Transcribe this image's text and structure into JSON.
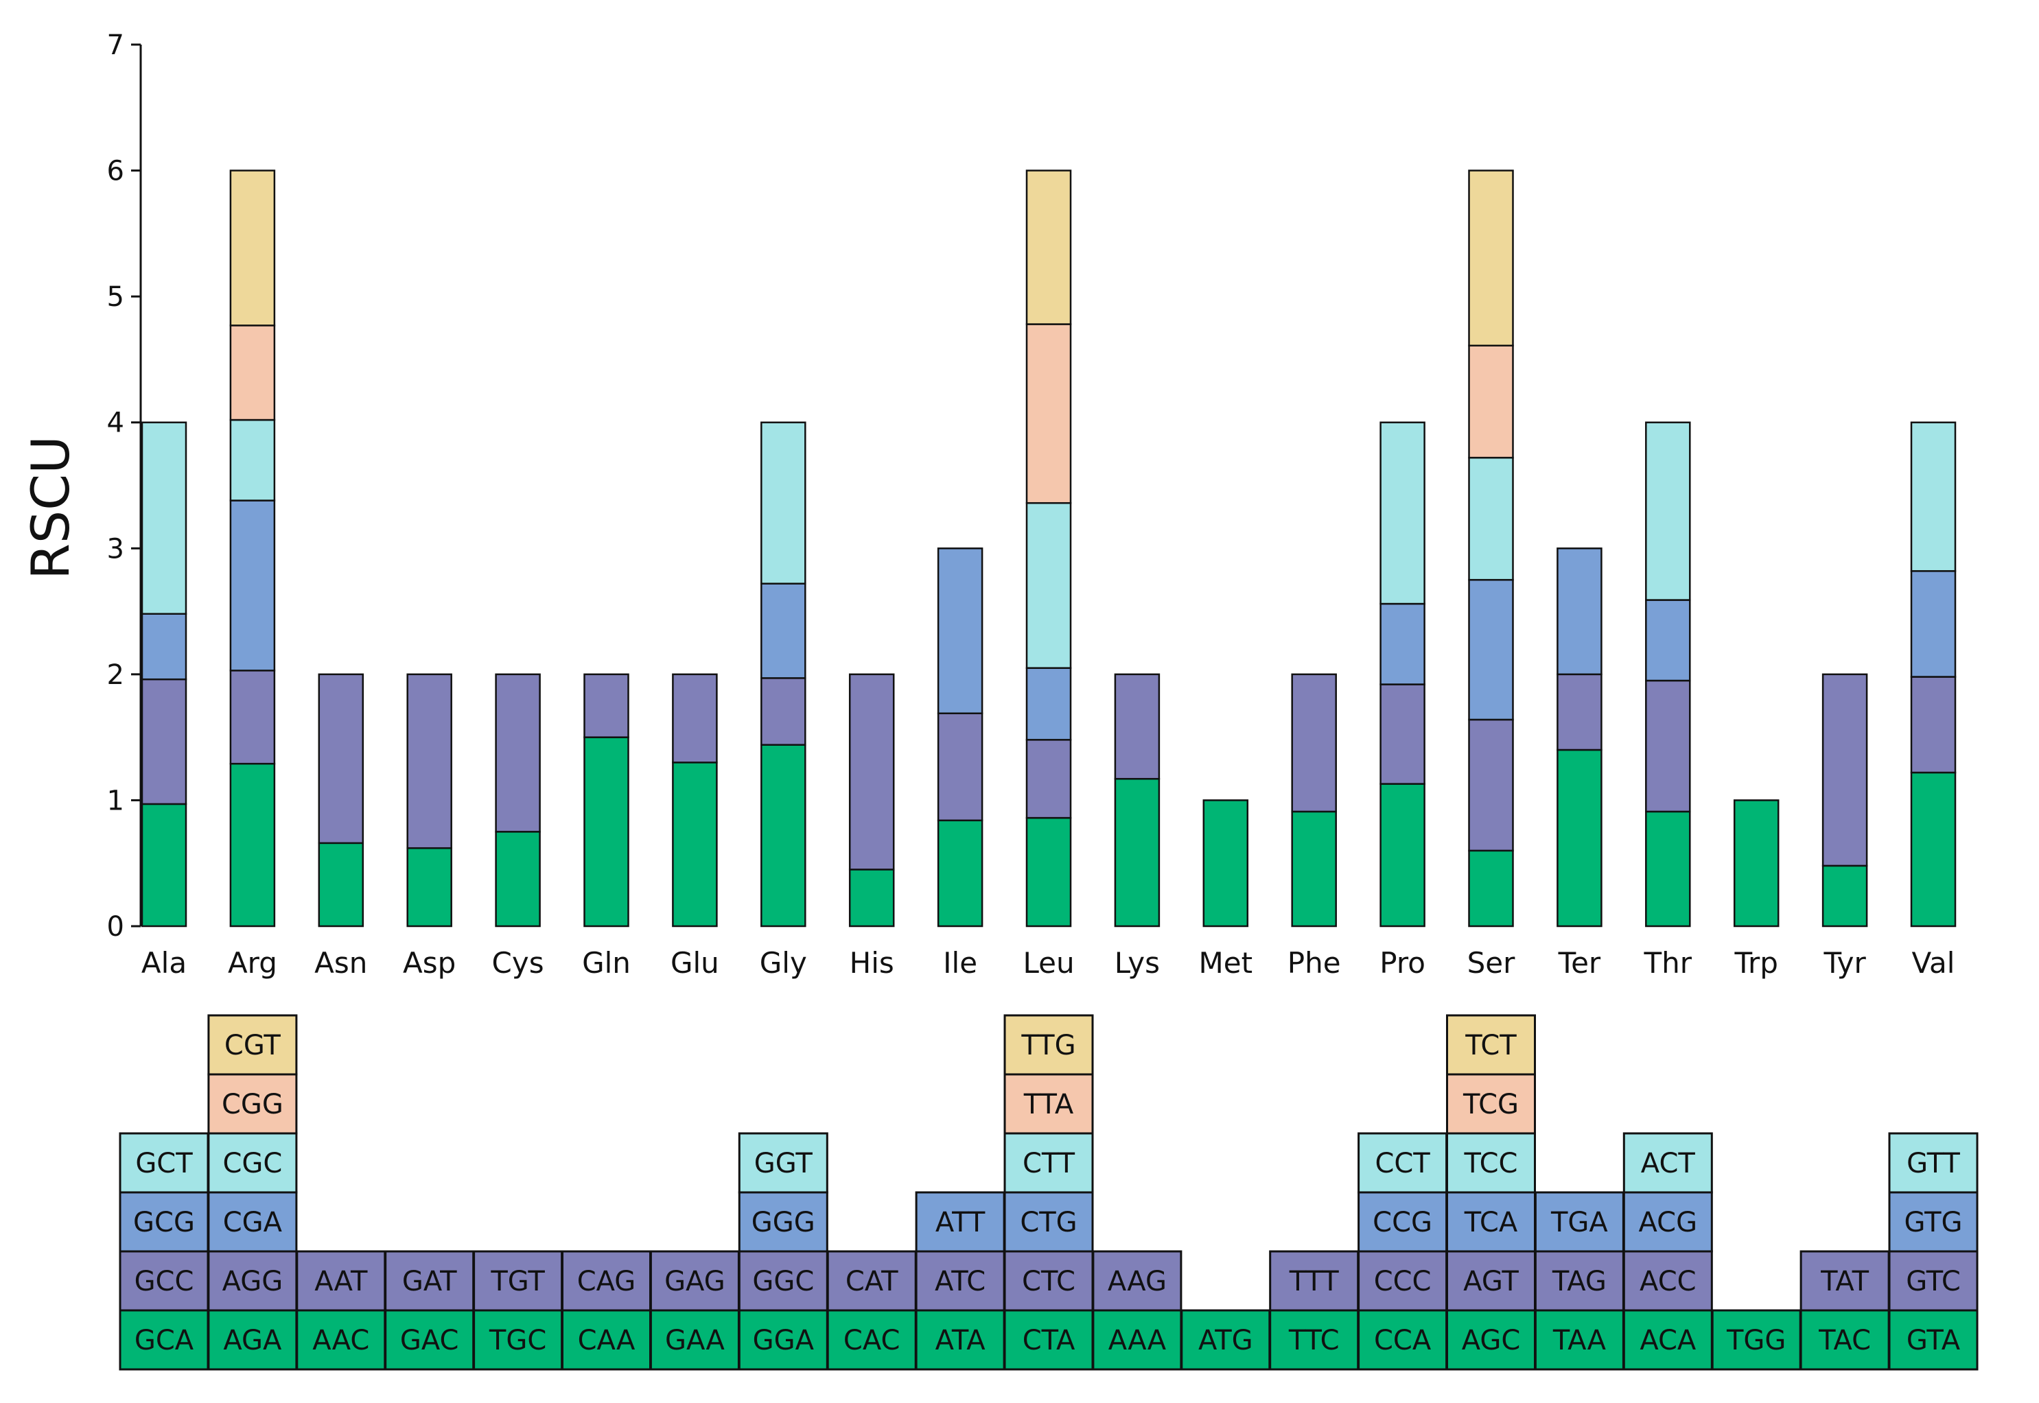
{
  "chart_data": {
    "type": "bar",
    "stacked": true,
    "ylabel": "RSCU",
    "xlabel": "",
    "ylim": [
      0,
      7
    ],
    "yticks": [
      0,
      1,
      2,
      3,
      4,
      5,
      6,
      7
    ],
    "grid": false,
    "layer_colors": [
      "#00b574",
      "#8080b8",
      "#7aa0d6",
      "#a3e4e6",
      "#f5c7ad",
      "#eed89a"
    ],
    "categories": [
      "Ala",
      "Arg",
      "Asn",
      "Asp",
      "Cys",
      "Gln",
      "Glu",
      "Gly",
      "His",
      "Ile",
      "Leu",
      "Lys",
      "Met",
      "Phe",
      "Pro",
      "Ser",
      "Ter",
      "Thr",
      "Trp",
      "Tyr",
      "Val"
    ],
    "stacks": [
      {
        "aa": "Ala",
        "codons": [
          "GCA",
          "GCC",
          "GCG",
          "GCT"
        ],
        "values": [
          0.97,
          0.99,
          0.52,
          1.52
        ]
      },
      {
        "aa": "Arg",
        "codons": [
          "AGA",
          "AGG",
          "CGA",
          "CGC",
          "CGG",
          "CGT"
        ],
        "values": [
          1.29,
          0.74,
          1.35,
          0.64,
          0.75,
          1.23
        ]
      },
      {
        "aa": "Asn",
        "codons": [
          "AAC",
          "AAT"
        ],
        "values": [
          0.66,
          1.34
        ]
      },
      {
        "aa": "Asp",
        "codons": [
          "GAC",
          "GAT"
        ],
        "values": [
          0.62,
          1.38
        ]
      },
      {
        "aa": "Cys",
        "codons": [
          "TGC",
          "TGT"
        ],
        "values": [
          0.75,
          1.25
        ]
      },
      {
        "aa": "Gln",
        "codons": [
          "CAA",
          "CAG"
        ],
        "values": [
          1.5,
          0.5
        ]
      },
      {
        "aa": "Glu",
        "codons": [
          "GAA",
          "GAG"
        ],
        "values": [
          1.3,
          0.7
        ]
      },
      {
        "aa": "Gly",
        "codons": [
          "GGA",
          "GGC",
          "GGG",
          "GGT"
        ],
        "values": [
          1.44,
          0.53,
          0.75,
          1.28
        ]
      },
      {
        "aa": "His",
        "codons": [
          "CAC",
          "CAT"
        ],
        "values": [
          0.45,
          1.55
        ]
      },
      {
        "aa": "Ile",
        "codons": [
          "ATA",
          "ATC",
          "ATT"
        ],
        "values": [
          0.84,
          0.85,
          1.31
        ]
      },
      {
        "aa": "Leu",
        "codons": [
          "CTA",
          "CTC",
          "CTG",
          "CTT",
          "TTA",
          "TTG"
        ],
        "values": [
          0.86,
          0.62,
          0.57,
          1.31,
          1.42,
          1.22
        ]
      },
      {
        "aa": "Lys",
        "codons": [
          "AAA",
          "AAG"
        ],
        "values": [
          1.17,
          0.83
        ]
      },
      {
        "aa": "Met",
        "codons": [
          "ATG"
        ],
        "values": [
          1.0
        ]
      },
      {
        "aa": "Phe",
        "codons": [
          "TTC",
          "TTT"
        ],
        "values": [
          0.91,
          1.09
        ]
      },
      {
        "aa": "Pro",
        "codons": [
          "CCA",
          "CCC",
          "CCG",
          "CCT"
        ],
        "values": [
          1.13,
          0.79,
          0.64,
          1.44
        ]
      },
      {
        "aa": "Ser",
        "codons": [
          "AGC",
          "AGT",
          "TCA",
          "TCC",
          "TCG",
          "TCT"
        ],
        "values": [
          0.6,
          1.04,
          1.11,
          0.97,
          0.89,
          1.39
        ]
      },
      {
        "aa": "Ter",
        "codons": [
          "TAA",
          "TAG",
          "TGA"
        ],
        "values": [
          1.4,
          0.6,
          1.0
        ]
      },
      {
        "aa": "Thr",
        "codons": [
          "ACA",
          "ACC",
          "ACG",
          "ACT"
        ],
        "values": [
          0.91,
          1.04,
          0.64,
          1.41
        ]
      },
      {
        "aa": "Trp",
        "codons": [
          "TGG"
        ],
        "values": [
          1.0
        ]
      },
      {
        "aa": "Tyr",
        "codons": [
          "TAC",
          "TAT"
        ],
        "values": [
          0.48,
          1.52
        ]
      },
      {
        "aa": "Val",
        "codons": [
          "GTA",
          "GTC",
          "GTG",
          "GTT"
        ],
        "values": [
          1.22,
          0.76,
          0.84,
          1.18
        ]
      }
    ]
  }
}
